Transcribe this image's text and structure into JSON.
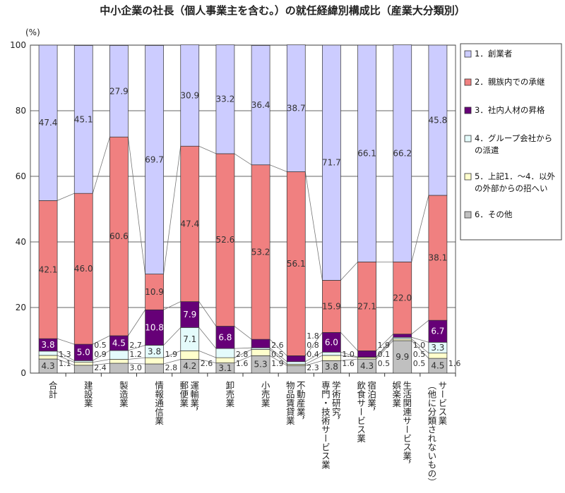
{
  "chart_data": {
    "type": "bar",
    "stacked": true,
    "title": "中小企業の社長（個人事業主を含む。）の就任経緯別構成比（産業大分類別）",
    "ylabel": "(%)",
    "ylim": [
      0,
      100
    ],
    "yticks": [
      0,
      20,
      40,
      60,
      80,
      100
    ],
    "grid": true,
    "legend_position": "right",
    "categories": [
      [
        "合計"
      ],
      [
        "建設業"
      ],
      [
        "製造業"
      ],
      [
        "情報通信業"
      ],
      [
        "運輸業，",
        "郵便業"
      ],
      [
        "卸売業"
      ],
      [
        "小売業"
      ],
      [
        "不動産業，",
        "物品賃貸業"
      ],
      [
        "学術研究，",
        "専門・技術サービス業"
      ],
      [
        "宿泊業，",
        "飲食サービス業"
      ],
      [
        "生活関連サービス業，",
        "娯楽業"
      ],
      [
        "サービス業",
        "（他に分類されないもの）"
      ]
    ],
    "series": [
      {
        "name": "6．その他",
        "color": "#c0c0c0",
        "values": [
          4.3,
          2.4,
          3.0,
          2.8,
          4.2,
          3.1,
          5.3,
          2.3,
          3.8,
          4.3,
          9.9,
          4.5
        ]
      },
      {
        "name": "5．上記1．～4．以外の外部からの招へい",
        "color": "#ffffcc",
        "values": [
          1.1,
          0.9,
          1.2,
          1.9,
          2.6,
          1.6,
          1.9,
          0.4,
          1.6,
          0.5,
          0.5,
          1.6
        ]
      },
      {
        "name": "4．グループ会社からの派遣",
        "color": "#e4fbfb",
        "values": [
          1.3,
          0.5,
          2.7,
          3.8,
          7.1,
          2.8,
          0.5,
          0.8,
          1.0,
          0.1,
          0.5,
          3.3
        ]
      },
      {
        "name": "3．社内人材の昇格",
        "color": "#660077",
        "values": [
          3.8,
          5.0,
          4.5,
          10.8,
          7.9,
          6.8,
          2.6,
          1.8,
          6.0,
          1.9,
          1.0,
          6.7
        ]
      },
      {
        "name": "2．親族内での承継",
        "color": "#f08080",
        "values": [
          42.1,
          46.0,
          60.6,
          10.9,
          47.4,
          52.6,
          53.2,
          56.1,
          15.9,
          27.1,
          22.0,
          38.1
        ]
      },
      {
        "name": "1．創業者",
        "color": "#ccccff",
        "values": [
          47.4,
          45.1,
          27.9,
          69.7,
          30.9,
          33.2,
          36.4,
          38.7,
          71.7,
          66.1,
          66.2,
          45.8
        ]
      }
    ],
    "legend_order": [
      5,
      4,
      3,
      2,
      1,
      0
    ],
    "legend_lines": [
      [
        "1．創業者"
      ],
      [
        "2．親族内での承継"
      ],
      [
        "3．社内人材の昇格"
      ],
      [
        "4．グループ会社から",
        "の派遣"
      ],
      [
        "5．上記1．～4．以外",
        "の外部からの招へい"
      ],
      [
        "6．その他"
      ]
    ]
  }
}
